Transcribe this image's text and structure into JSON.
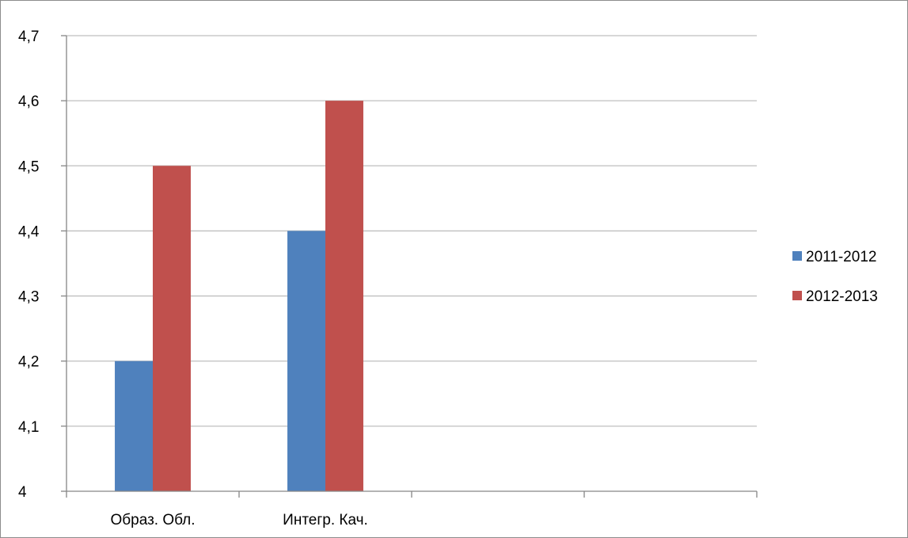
{
  "chart_data": {
    "type": "bar",
    "categories": [
      "Образ. Обл.",
      "Интегр. Кач.",
      "",
      ""
    ],
    "series": [
      {
        "name": "2011-2012",
        "values": [
          4.2,
          4.4,
          null,
          null
        ],
        "color": "#4f81bd"
      },
      {
        "name": "2012-2013",
        "values": [
          4.5,
          4.6,
          null,
          null
        ],
        "color": "#c0504d"
      }
    ],
    "ylim": [
      4,
      4.7
    ],
    "yticks": [
      4,
      4.1,
      4.2,
      4.3,
      4.4,
      4.5,
      4.6,
      4.7
    ],
    "ytick_labels": [
      "4",
      "4,1",
      "4,2",
      "4,3",
      "4,4",
      "4,5",
      "4,6",
      "4,7"
    ],
    "grid": true,
    "legend_position": "right",
    "title": "",
    "xlabel": "",
    "ylabel": "",
    "gridline_color": "#bfbfbf",
    "axis_color": "#868686"
  }
}
